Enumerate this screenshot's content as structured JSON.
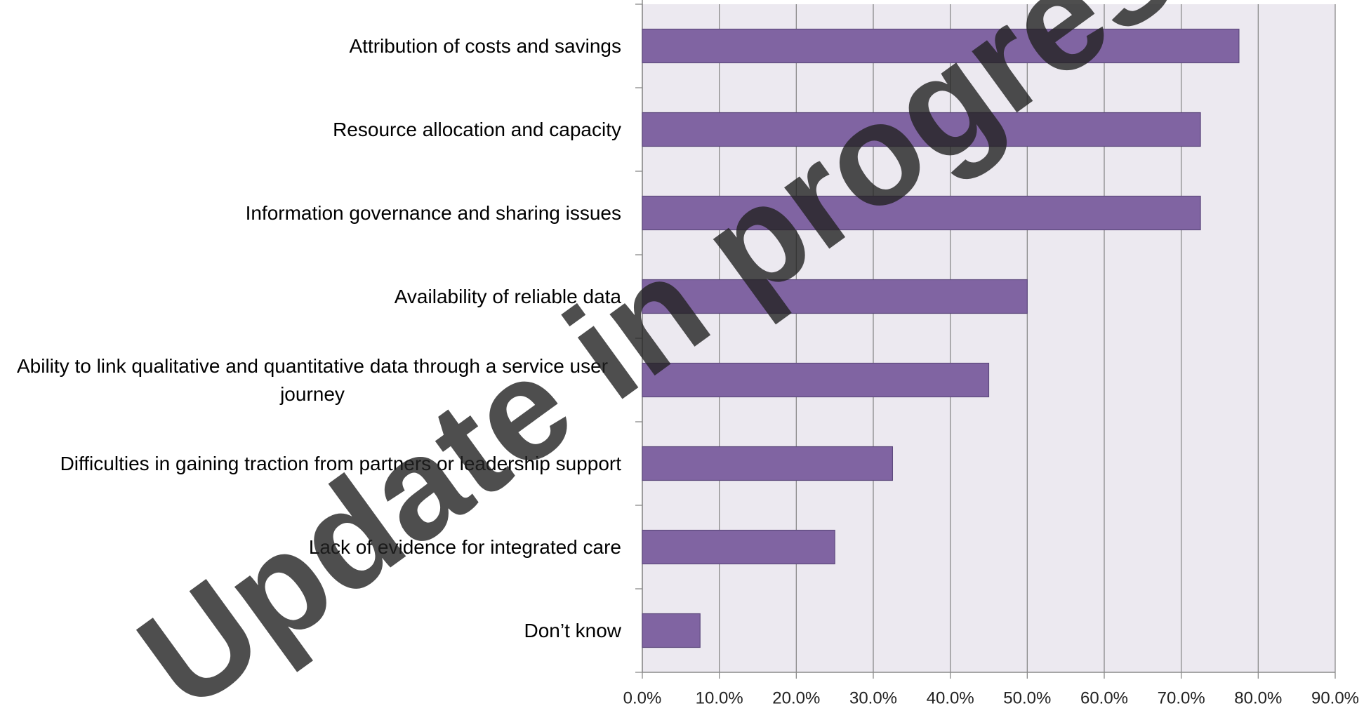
{
  "chart_data": {
    "type": "hbar",
    "categories": [
      "Attribution of costs and savings",
      "Resource allocation and capacity",
      "Information governance and sharing issues",
      "Availability of reliable data",
      "Ability to link qualitative and quantitative data through a service user journey",
      "Difficulties in gaining traction from partners or leadership support",
      "Lack of evidence for integrated care",
      "Don’t know"
    ],
    "values": [
      77.5,
      72.5,
      72.5,
      50,
      45,
      32.5,
      25,
      7.5
    ],
    "color": "#8064a2",
    "xlim": [
      0,
      90
    ],
    "xticks": [
      {
        "value": 0,
        "label": "0.0%"
      },
      {
        "value": 10,
        "label": "10.0%"
      },
      {
        "value": 20,
        "label": "20.0%"
      },
      {
        "value": 30,
        "label": "30.0%"
      },
      {
        "value": 40,
        "label": "40.0%"
      },
      {
        "value": 50,
        "label": "50.0%"
      },
      {
        "value": 60,
        "label": "60.0%"
      },
      {
        "value": 70,
        "label": "70.0%"
      },
      {
        "value": 80,
        "label": "80.0%"
      },
      {
        "value": 90,
        "label": "90.0%"
      }
    ],
    "grid": true,
    "annotation": "Update in progress"
  }
}
